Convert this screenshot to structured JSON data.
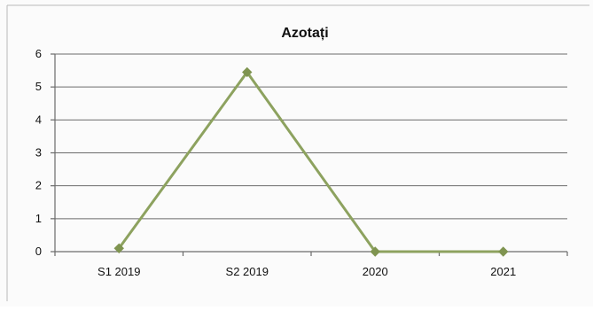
{
  "chart_data": {
    "type": "line",
    "title": "Azotați",
    "xlabel": "",
    "ylabel": "",
    "categories": [
      "S1 2019",
      "S2 2019",
      "2020",
      "2021"
    ],
    "series": [
      {
        "values": [
          0.1,
          5.45,
          0.0,
          0.0
        ],
        "color": "#8da25f"
      }
    ],
    "ylim": [
      0,
      6
    ],
    "yticks": [
      0,
      1,
      2,
      3,
      4,
      5,
      6
    ],
    "grid": true,
    "legend": "none"
  },
  "colors": {
    "background": "#fbfbfb",
    "grid": "#6b6b6b",
    "series": "#8da25f",
    "marker": "#7f9450"
  }
}
